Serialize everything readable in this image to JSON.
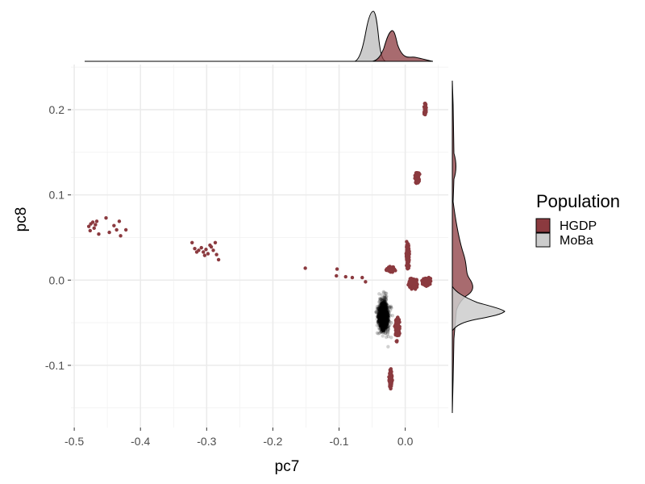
{
  "chart_data": {
    "type": "scatter",
    "title": "",
    "xlabel": "pc7",
    "ylabel": "pc8",
    "xlim": [
      -0.505,
      0.065
    ],
    "ylim": [
      -0.173,
      0.253
    ],
    "x_ticks": [
      -0.5,
      -0.4,
      -0.3,
      -0.2,
      -0.1,
      0.0
    ],
    "x_tick_labels": [
      "-0.5",
      "-0.4",
      "-0.3",
      "-0.2",
      "-0.1",
      "0.0"
    ],
    "y_ticks": [
      -0.1,
      0.0,
      0.1,
      0.2
    ],
    "y_tick_labels": [
      "-0.1",
      "0.0",
      "0.1",
      "0.2"
    ],
    "grid": true,
    "legend": {
      "title": "Population",
      "position": "right",
      "entries": [
        {
          "label": "HGDP",
          "color": "#8b3a3f"
        },
        {
          "label": "MoBa",
          "color": "#cccccc"
        }
      ]
    },
    "marginal_density": {
      "top": "pc7",
      "right": "pc8"
    },
    "series": [
      {
        "name": "HGDP",
        "color": "#8b3a3f",
        "points": [
          [
            -0.478,
            0.063
          ],
          [
            -0.475,
            0.066
          ],
          [
            -0.472,
            0.068
          ],
          [
            -0.47,
            0.061
          ],
          [
            -0.468,
            0.065
          ],
          [
            -0.466,
            0.069
          ],
          [
            -0.463,
            0.054
          ],
          [
            -0.476,
            0.058
          ],
          [
            -0.452,
            0.073
          ],
          [
            -0.447,
            0.056
          ],
          [
            -0.44,
            0.064
          ],
          [
            -0.436,
            0.059
          ],
          [
            -0.432,
            0.069
          ],
          [
            -0.43,
            0.052
          ],
          [
            -0.422,
            0.059
          ],
          [
            -0.322,
            0.044
          ],
          [
            -0.318,
            0.037
          ],
          [
            -0.315,
            0.033
          ],
          [
            -0.312,
            0.035
          ],
          [
            -0.308,
            0.038
          ],
          [
            -0.305,
            0.033
          ],
          [
            -0.303,
            0.029
          ],
          [
            -0.301,
            0.036
          ],
          [
            -0.298,
            0.031
          ],
          [
            -0.295,
            0.041
          ],
          [
            -0.293,
            0.039
          ],
          [
            -0.29,
            0.035
          ],
          [
            -0.287,
            0.044
          ],
          [
            -0.285,
            0.03
          ],
          [
            -0.282,
            0.024
          ],
          [
            -0.151,
            0.014
          ],
          [
            -0.103,
            0.013
          ],
          [
            -0.104,
            0.005
          ],
          [
            -0.09,
            0.004
          ],
          [
            -0.08,
            0.003
          ],
          [
            -0.065,
            0.003
          ],
          [
            -0.06,
            -0.002
          ]
        ]
      },
      {
        "name": "MoBa",
        "color": "#000000",
        "points": []
      }
    ]
  }
}
